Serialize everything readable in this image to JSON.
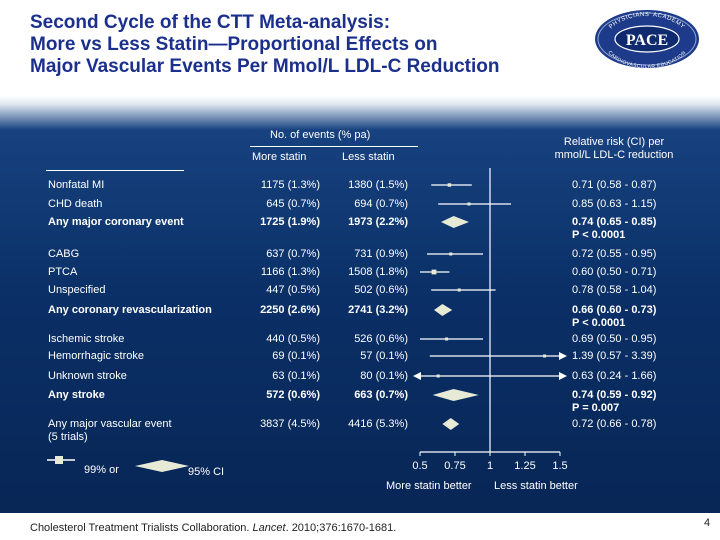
{
  "title": {
    "line1": "Second Cycle of the CTT Meta-analysis:",
    "line2": "More vs Less Statin—Proportional Effects on",
    "line3": "Major Vascular Events Per Mmol/L LDL-C Reduction"
  },
  "logo": {
    "arc_top": "PHYSICIANS' ACADEMY",
    "name": "PACE",
    "arc_bottom": "CARDIOVASCULAR EDUCATION"
  },
  "header": {
    "events_title": "No. of events (% pa)",
    "more_statin": "More statin",
    "less_statin": "Less statin",
    "rr_line1": "Relative risk (CI) per",
    "rr_line2": "mmol/L LDL-C reduction"
  },
  "rows": [
    {
      "label": "Nonfatal MI",
      "more": "1175 (1.3%)",
      "less": "1380 (1.5%)",
      "rr": "0.71 (0.58 - 0.87)",
      "p": "",
      "bold": false,
      "diamond": false,
      "est": 0.71,
      "lo": 0.58,
      "hi": 0.87,
      "arrow": false
    },
    {
      "label": "CHD death",
      "more": "645 (0.7%)",
      "less": "694 (0.7%)",
      "rr": "0.85 (0.63 - 1.15)",
      "p": "",
      "bold": false,
      "diamond": false,
      "est": 0.85,
      "lo": 0.63,
      "hi": 1.15,
      "arrow": false
    },
    {
      "label": "Any major coronary event",
      "more": "1725 (1.9%)",
      "less": "1973 (2.2%)",
      "rr": "0.74 (0.65 - 0.85)",
      "p": "P < 0.0001",
      "bold": true,
      "diamond": true,
      "est": 0.74,
      "lo": 0.65,
      "hi": 0.85,
      "arrow": false
    },
    {
      "label": "CABG",
      "more": "637 (0.7%)",
      "less": "731 (0.9%)",
      "rr": "0.72 (0.55 - 0.95)",
      "p": "",
      "bold": false,
      "diamond": false,
      "est": 0.72,
      "lo": 0.55,
      "hi": 0.95,
      "arrow": false
    },
    {
      "label": "PTCA",
      "more": "1166 (1.3%)",
      "less": "1508 (1.8%)",
      "rr": "0.60 (0.50 - 0.71)",
      "p": "",
      "bold": false,
      "diamond": false,
      "est": 0.6,
      "lo": 0.5,
      "hi": 0.71,
      "arrow": false
    },
    {
      "label": "Unspecified",
      "more": "447 (0.5%)",
      "less": "502 (0.6%)",
      "rr": "0.78 (0.58 - 1.04)",
      "p": "",
      "bold": false,
      "diamond": false,
      "est": 0.78,
      "lo": 0.58,
      "hi": 1.04,
      "arrow": false
    },
    {
      "label": "Any coronary revascularization",
      "more": "2250 (2.6%)",
      "less": "2741 (3.2%)",
      "rr": "0.66 (0.60 - 0.73)",
      "p": "P < 0.0001",
      "bold": true,
      "diamond": true,
      "est": 0.66,
      "lo": 0.6,
      "hi": 0.73,
      "arrow": false
    },
    {
      "label": "Ischemic stroke",
      "more": "440 (0.5%)",
      "less": "526 (0.6%)",
      "rr": "0.69 (0.50 - 0.95)",
      "p": "",
      "bold": false,
      "diamond": false,
      "est": 0.69,
      "lo": 0.5,
      "hi": 0.95,
      "arrow": false
    },
    {
      "label": "Hemorrhagic stroke",
      "more": "69 (0.1%)",
      "less": "57 (0.1%)",
      "rr": "1.39 (0.57 - 3.39)",
      "p": "",
      "bold": false,
      "diamond": false,
      "est": 1.39,
      "lo": 0.57,
      "hi": 3.39,
      "arrow": true
    },
    {
      "label": "Unknown stroke",
      "more": "63 (0.1%)",
      "less": "80 (0.1%)",
      "rr": "0.63 (0.24 - 1.66)",
      "p": "",
      "bold": false,
      "diamond": false,
      "est": 0.63,
      "lo": 0.24,
      "hi": 1.66,
      "arrow": true
    },
    {
      "label": "Any stroke",
      "more": "572 (0.6%)",
      "less": "663 (0.7%)",
      "rr": "0.74 (0.59 - 0.92)",
      "p": "P = 0.007",
      "bold": true,
      "diamond": true,
      "est": 0.74,
      "lo": 0.59,
      "hi": 0.92,
      "arrow": false
    },
    {
      "label": "Any major vascular event",
      "label2": "(5 trials)",
      "more": "3837 (4.5%)",
      "less": "4416 (5.3%)",
      "rr": "0.72 (0.66 - 0.78)",
      "p": "",
      "bold": false,
      "diamond": true,
      "est": 0.72,
      "lo": 0.66,
      "hi": 0.78,
      "arrow": false
    }
  ],
  "axis": {
    "ticks": [
      "0.5",
      "0.75",
      "1",
      "1.25",
      "1.5"
    ],
    "favors_left": "More statin better",
    "favors_right": "Less statin better"
  },
  "legend": {
    "ci99": "99% or",
    "ci95": "95% CI"
  },
  "citation": {
    "before": "Cholesterol Treatment Trialists Collaboration. ",
    "journal": "Lancet",
    "after": ". 2010;376:1670-1681."
  },
  "page_number": "4",
  "colors": {
    "title": "#1b2f8c",
    "background_top": "#17427f",
    "background_bottom": "#082554",
    "marker": "#e7ebd6",
    "line": "#ffffff"
  },
  "chart_data": {
    "type": "forest",
    "xlim": [
      0.5,
      1.5
    ],
    "x_ticks": [
      0.5,
      0.75,
      1,
      1.25,
      1.5
    ],
    "reference_line": 1,
    "categories": [
      "Nonfatal MI",
      "CHD death",
      "Any major coronary event",
      "CABG",
      "PTCA",
      "Unspecified",
      "Any coronary revascularization",
      "Ischemic stroke",
      "Hemorrhagic stroke",
      "Unknown stroke",
      "Any stroke",
      "Any major vascular event"
    ],
    "estimate": [
      0.71,
      0.85,
      0.74,
      0.72,
      0.6,
      0.78,
      0.66,
      0.69,
      1.39,
      0.63,
      0.74,
      0.72
    ],
    "ci_low": [
      0.58,
      0.63,
      0.65,
      0.55,
      0.5,
      0.58,
      0.6,
      0.5,
      0.57,
      0.24,
      0.59,
      0.66
    ],
    "ci_high": [
      0.87,
      1.15,
      0.85,
      0.95,
      0.71,
      1.04,
      0.73,
      0.95,
      3.39,
      1.66,
      0.92,
      0.78
    ],
    "xlabel": "",
    "ylabel": ""
  }
}
